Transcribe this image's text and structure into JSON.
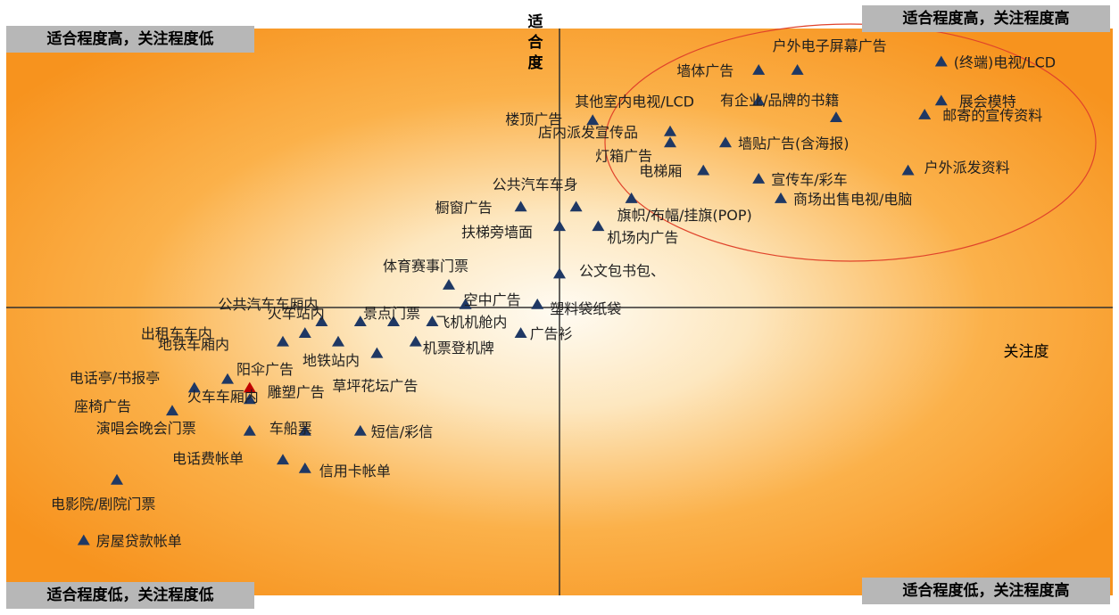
{
  "quadrants": {
    "top_left": "适合程度高，关注程度低",
    "top_right": "适合程度高，关注程度高",
    "bottom_left": "适合程度低，关注程度低",
    "bottom_right": "适合程度低，关注程度高"
  },
  "colors": {
    "background_outer": "#f7931e",
    "background_center": "#fffbf2",
    "marker": "#1f3864",
    "highlight_marker": "#c00000",
    "label": "#1f1f1f",
    "axis": "#303030",
    "ellipse": "#e0432b",
    "corner_box": "#b7b7b7"
  },
  "chart_data": {
    "type": "scatter",
    "xlabel": "关注度",
    "ylabel": "适合度",
    "xlim": [
      -10,
      10
    ],
    "ylim": [
      -10,
      10
    ],
    "grid": false,
    "highlight": "ellipse around top-right cluster",
    "points": [
      {
        "label": "户外电子屏幕广告",
        "x": 4.3,
        "y": 8.5
      },
      {
        "label": "墙体广告",
        "x": 3.6,
        "y": 8.5
      },
      {
        "label": "(终端)电视/LCD",
        "x": 6.9,
        "y": 8.8
      },
      {
        "label": "其他室内电视/LCD",
        "x": 3.6,
        "y": 7.4
      },
      {
        "label": "展会模特",
        "x": 6.9,
        "y": 7.4
      },
      {
        "label": "有企业/品牌的书籍",
        "x": 5.0,
        "y": 6.8
      },
      {
        "label": "邮寄的宣传资料",
        "x": 6.6,
        "y": 6.9
      },
      {
        "label": "楼顶广告",
        "x": 0.6,
        "y": 6.7
      },
      {
        "label": "店内派发宣传品",
        "x": 2.0,
        "y": 6.3
      },
      {
        "label": "灯箱广告",
        "x": 2.0,
        "y": 5.9
      },
      {
        "label": "墙贴广告(含海报)",
        "x": 3.0,
        "y": 5.9
      },
      {
        "label": "电梯厢",
        "x": 2.6,
        "y": 4.9
      },
      {
        "label": "户外派发资料",
        "x": 6.3,
        "y": 4.9
      },
      {
        "label": "宣传车/彩车",
        "x": 3.6,
        "y": 4.6
      },
      {
        "label": "公共汽车车身",
        "x": 0.3,
        "y": 3.6
      },
      {
        "label": "商场出售电视/电脑",
        "x": 4.0,
        "y": 3.9
      },
      {
        "label": "橱窗广告",
        "x": -0.7,
        "y": 3.6
      },
      {
        "label": "旗帜/布幅/挂旗(POP)",
        "x": 1.3,
        "y": 3.9
      },
      {
        "label": "扶梯旁墙面",
        "x": 0.0,
        "y": 2.9
      },
      {
        "label": "机场内广告",
        "x": 0.7,
        "y": 2.9
      },
      {
        "label": "体育赛事门票",
        "x": -2.0,
        "y": 0.8
      },
      {
        "label": "公文包书包、",
        "x": 0.0,
        "y": 1.2
      },
      {
        "label": "公共汽车车厢内",
        "x": -4.3,
        "y": -0.5
      },
      {
        "label": "景点门票",
        "x": -3.0,
        "y": -0.5
      },
      {
        "label": "空中广告",
        "x": -1.7,
        "y": 0.1
      },
      {
        "label": "塑料袋纸袋",
        "x": -0.4,
        "y": 0.1
      },
      {
        "label": "出租车车内",
        "x": -4.6,
        "y": -0.9
      },
      {
        "label": "火车站内",
        "x": -3.6,
        "y": -0.5
      },
      {
        "label": "飞机机舱内",
        "x": -2.3,
        "y": -0.5
      },
      {
        "label": "广告衫",
        "x": -0.7,
        "y": -0.9
      },
      {
        "label": "地铁车厢内",
        "x": -5.0,
        "y": -1.2
      },
      {
        "label": "地铁站内",
        "x": -4.0,
        "y": -1.2
      },
      {
        "label": "机票登机牌",
        "x": -2.6,
        "y": -1.2
      },
      {
        "label": "草坪花坛广告",
        "x": -3.3,
        "y": -1.6
      },
      {
        "label": "电话亭/书报亭",
        "x": -6.6,
        "y": -2.8
      },
      {
        "label": "阳伞广告",
        "x": -6.0,
        "y": -2.5
      },
      {
        "label": "雕塑广告",
        "x": -5.6,
        "y": -2.8,
        "highlight": true
      },
      {
        "label": "座椅广告",
        "x": -7.0,
        "y": -3.6
      },
      {
        "label": "火车车厢内",
        "x": -5.6,
        "y": -3.2
      },
      {
        "label": "演唱会晚会门票",
        "x": -5.6,
        "y": -4.3
      },
      {
        "label": "车船票",
        "x": -4.6,
        "y": -4.3
      },
      {
        "label": "短信/彩信",
        "x": -3.6,
        "y": -4.3
      },
      {
        "label": "电话费帐单",
        "x": -5.0,
        "y": -5.3
      },
      {
        "label": "信用卡帐单",
        "x": -4.6,
        "y": -5.6
      },
      {
        "label": "电影院/剧院门票",
        "x": -8.0,
        "y": -6.0
      },
      {
        "label": "房屋贷款帐单",
        "x": -8.6,
        "y": -8.1
      }
    ]
  }
}
